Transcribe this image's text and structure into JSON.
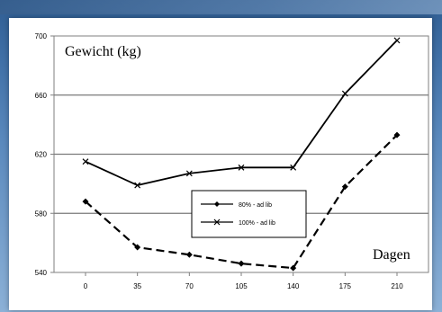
{
  "chart_data": {
    "type": "line",
    "title": "",
    "ylabel": "Gewicht (kg)",
    "xlabel": "Dagen",
    "x": [
      0,
      35,
      70,
      105,
      140,
      175,
      210
    ],
    "x_tick_labels": [
      "0",
      "35",
      "70",
      "105",
      "140",
      "175",
      "210"
    ],
    "y_tick_labels": [
      "540",
      "580",
      "620",
      "660",
      "700"
    ],
    "ylim": [
      540,
      700
    ],
    "grid": "horizontal",
    "legend_placement": "center",
    "series": [
      {
        "name": "80% - ad lib",
        "values": [
          588,
          557,
          552,
          546,
          543,
          598,
          633
        ],
        "style": "dashed",
        "marker": "diamond",
        "color": "#000000"
      },
      {
        "name": "100% - ad lib",
        "values": [
          615,
          599,
          607,
          611,
          611,
          661,
          697
        ],
        "style": "solid",
        "marker": "x",
        "color": "#000000"
      }
    ]
  }
}
